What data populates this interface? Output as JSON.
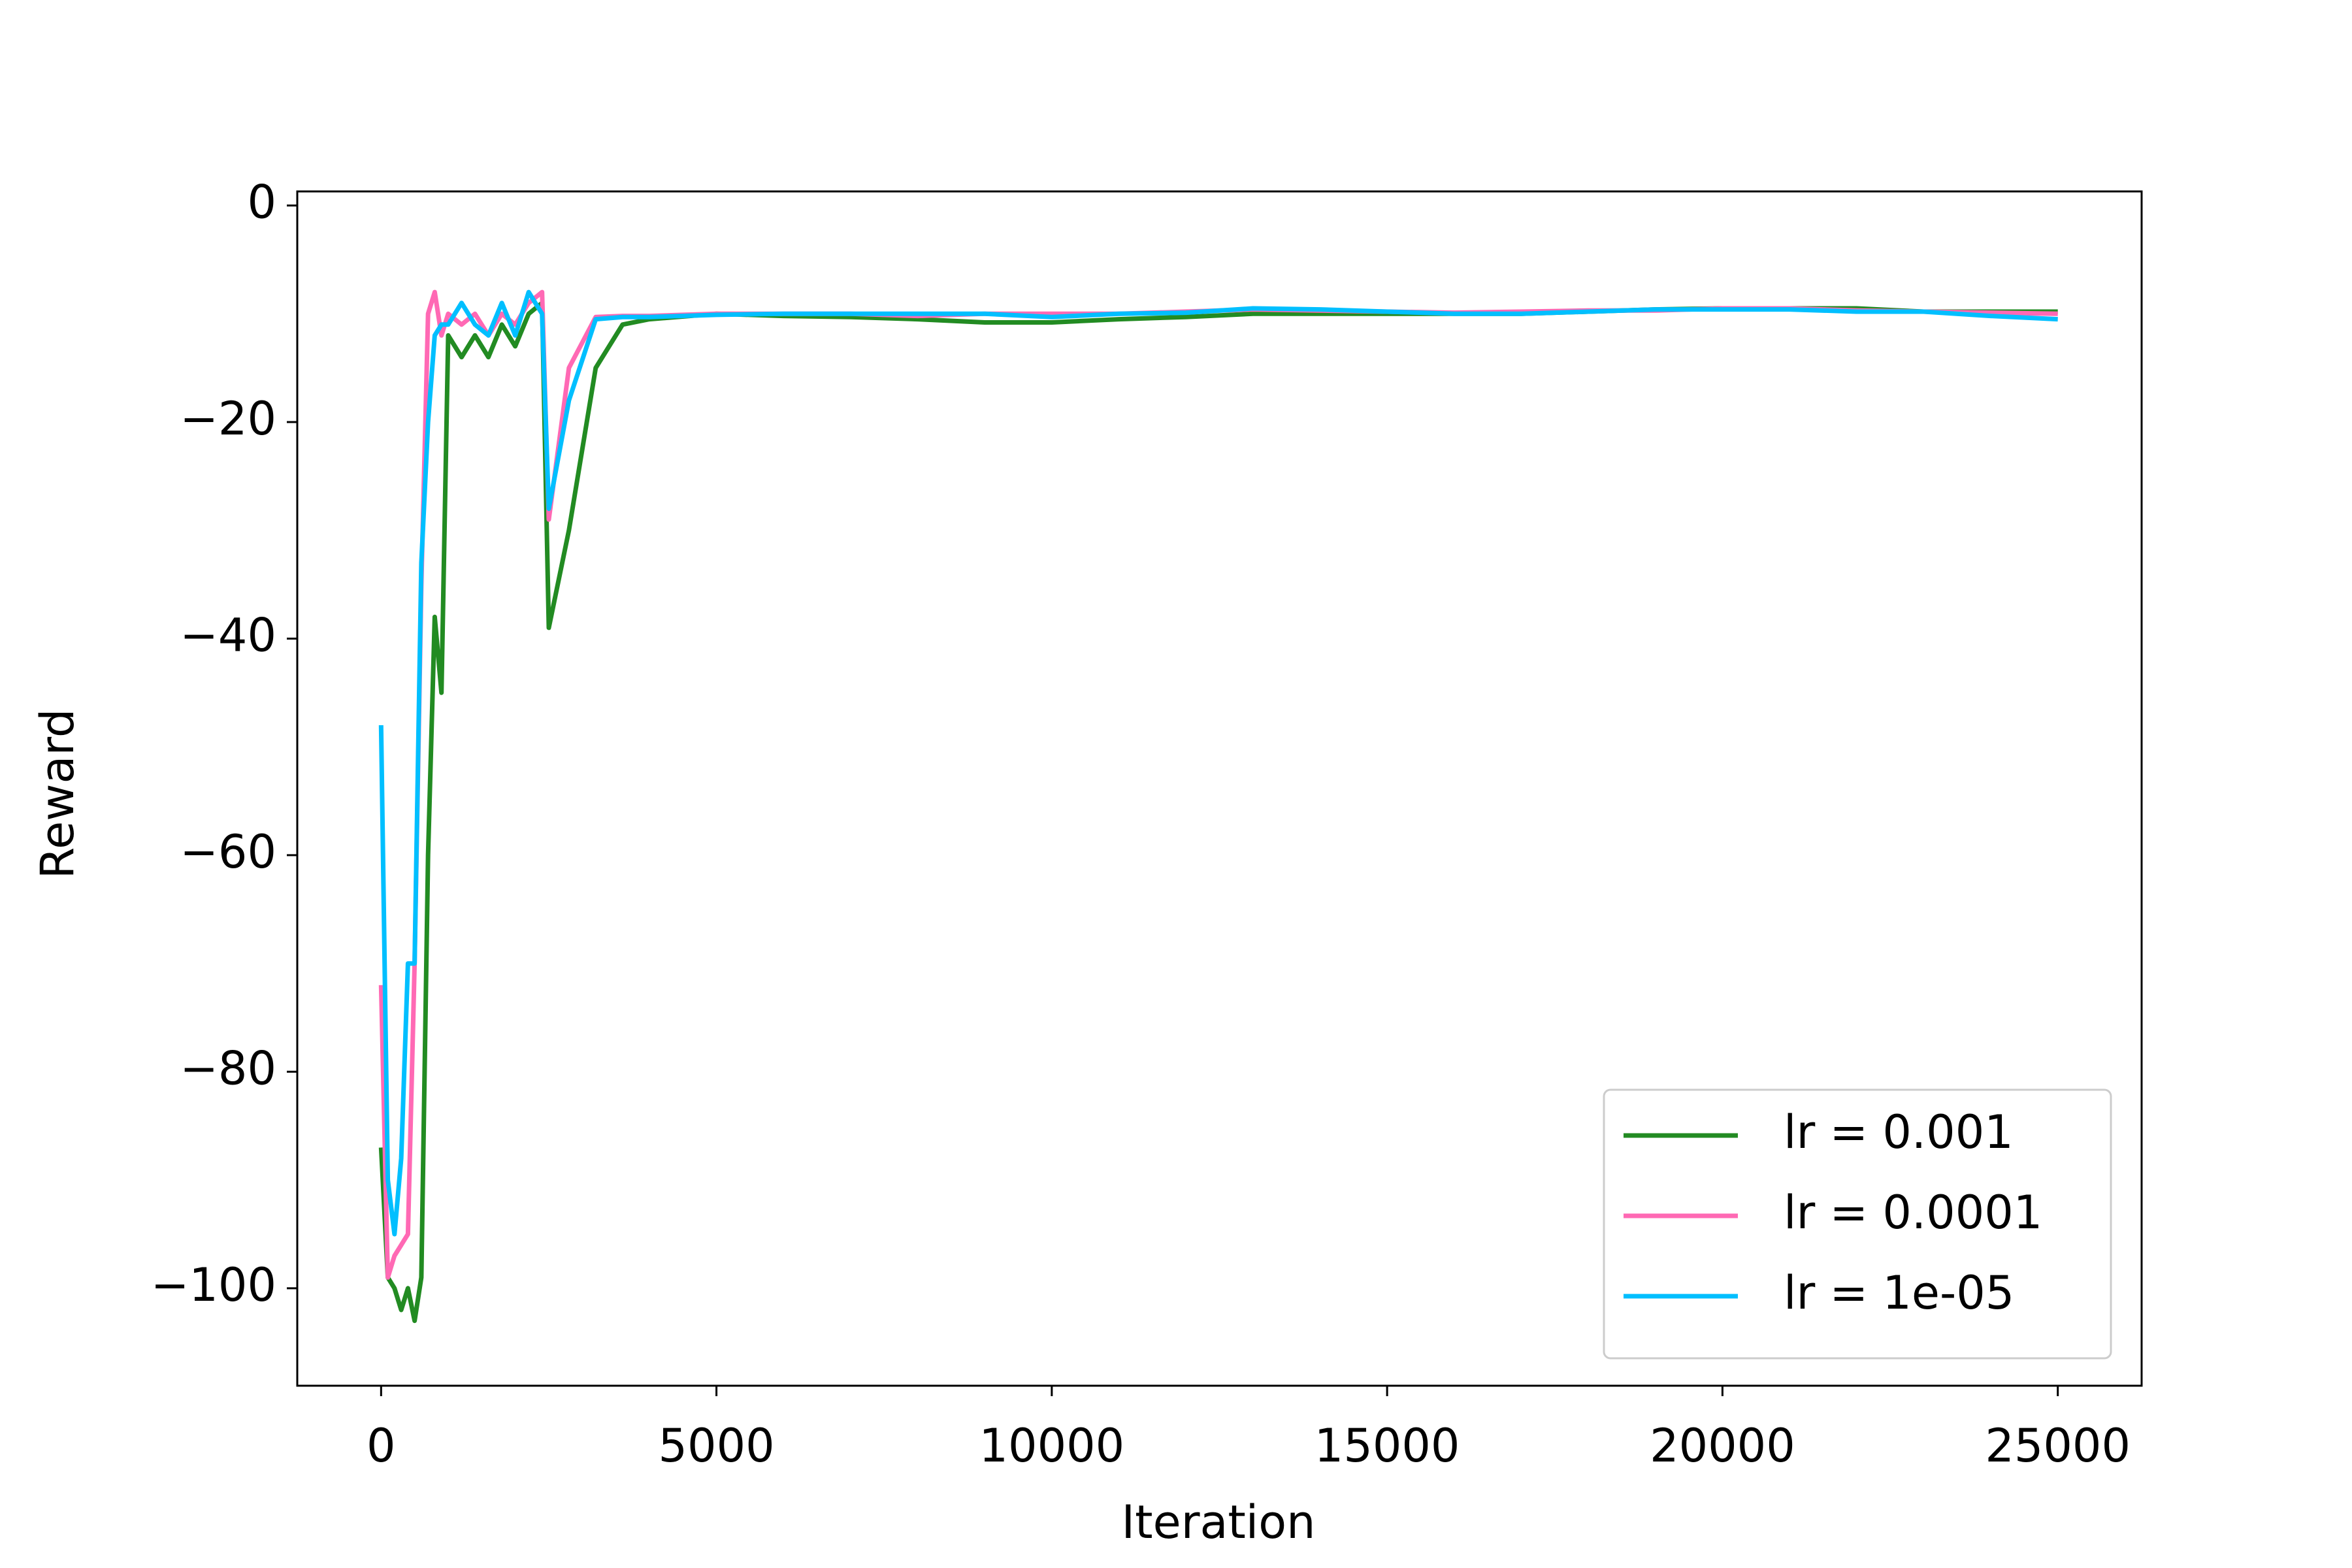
{
  "chart_data": {
    "type": "line",
    "xlabel": "Iteration",
    "ylabel": "Reward",
    "x": [
      0,
      100,
      200,
      300,
      400,
      500,
      600,
      700,
      800,
      900,
      1000,
      1200,
      1400,
      1600,
      1800,
      2000,
      2200,
      2400,
      2500,
      2800,
      3200,
      3600,
      4000,
      5000,
      6000,
      7000,
      8000,
      9000,
      10000,
      11000,
      12000,
      13000,
      14000,
      15000,
      16000,
      17000,
      18000,
      19000,
      20000,
      21000,
      22000,
      23000,
      24000,
      25000
    ],
    "series": [
      {
        "name": "lr = 0.001",
        "color": "#228b22",
        "values": [
          -87,
          -99,
          -100,
          -102,
          -100,
          -103,
          -99,
          -60,
          -38,
          -45,
          -12,
          -14,
          -12,
          -14,
          -11,
          -13,
          -10,
          -9,
          -39,
          -30,
          -15,
          -11,
          -10.5,
          -10,
          -10.2,
          -10.3,
          -10.5,
          -10.8,
          -10.8,
          -10.5,
          -10.3,
          -10,
          -10,
          -10,
          -10,
          -10,
          -9.8,
          -9.6,
          -9.5,
          -9.5,
          -9.5,
          -9.8,
          -9.8,
          -9.8
        ]
      },
      {
        "name": "lr = 0.0001",
        "color": "#ff69b4",
        "values": [
          -72,
          -99,
          -97,
          -96,
          -95,
          -70,
          -35,
          -10,
          -8,
          -12,
          -10,
          -11,
          -10,
          -12,
          -10,
          -11,
          -9,
          -8,
          -29,
          -15,
          -10.3,
          -10.2,
          -10.2,
          -10,
          -10,
          -10,
          -10.2,
          -10,
          -10,
          -10,
          -9.8,
          -9.6,
          -9.7,
          -9.8,
          -9.9,
          -9.8,
          -9.7,
          -9.7,
          -9.5,
          -9.5,
          -9.7,
          -9.8,
          -9.9,
          -10
        ]
      },
      {
        "name": "lr = 1e-05",
        "color": "#00bfff",
        "values": [
          -48,
          -90,
          -95,
          -88,
          -70,
          -70,
          -33,
          -20,
          -12,
          -11,
          -11,
          -9,
          -11,
          -12,
          -9,
          -12,
          -8,
          -10,
          -28,
          -18,
          -10.5,
          -10.3,
          -10.3,
          -10.1,
          -10,
          -10,
          -10,
          -10,
          -10.3,
          -10,
          -9.9,
          -9.5,
          -9.6,
          -9.8,
          -10,
          -10,
          -9.8,
          -9.6,
          -9.6,
          -9.6,
          -9.8,
          -9.8,
          -10.2,
          -10.5
        ]
      }
    ],
    "xlim": [
      -1250,
      26250
    ],
    "xticks": [
      0,
      5000,
      10000,
      15000,
      20000,
      25000
    ],
    "ylim": [
      -109,
      1.3
    ],
    "yticks": [
      {
        "value": -100,
        "label": "−100"
      },
      {
        "value": -80,
        "label": "−80"
      },
      {
        "value": -60,
        "label": "−60"
      },
      {
        "value": -40,
        "label": "−40"
      },
      {
        "value": -20,
        "label": "−20"
      },
      0
    ],
    "grid": false,
    "legend": "lower right"
  }
}
